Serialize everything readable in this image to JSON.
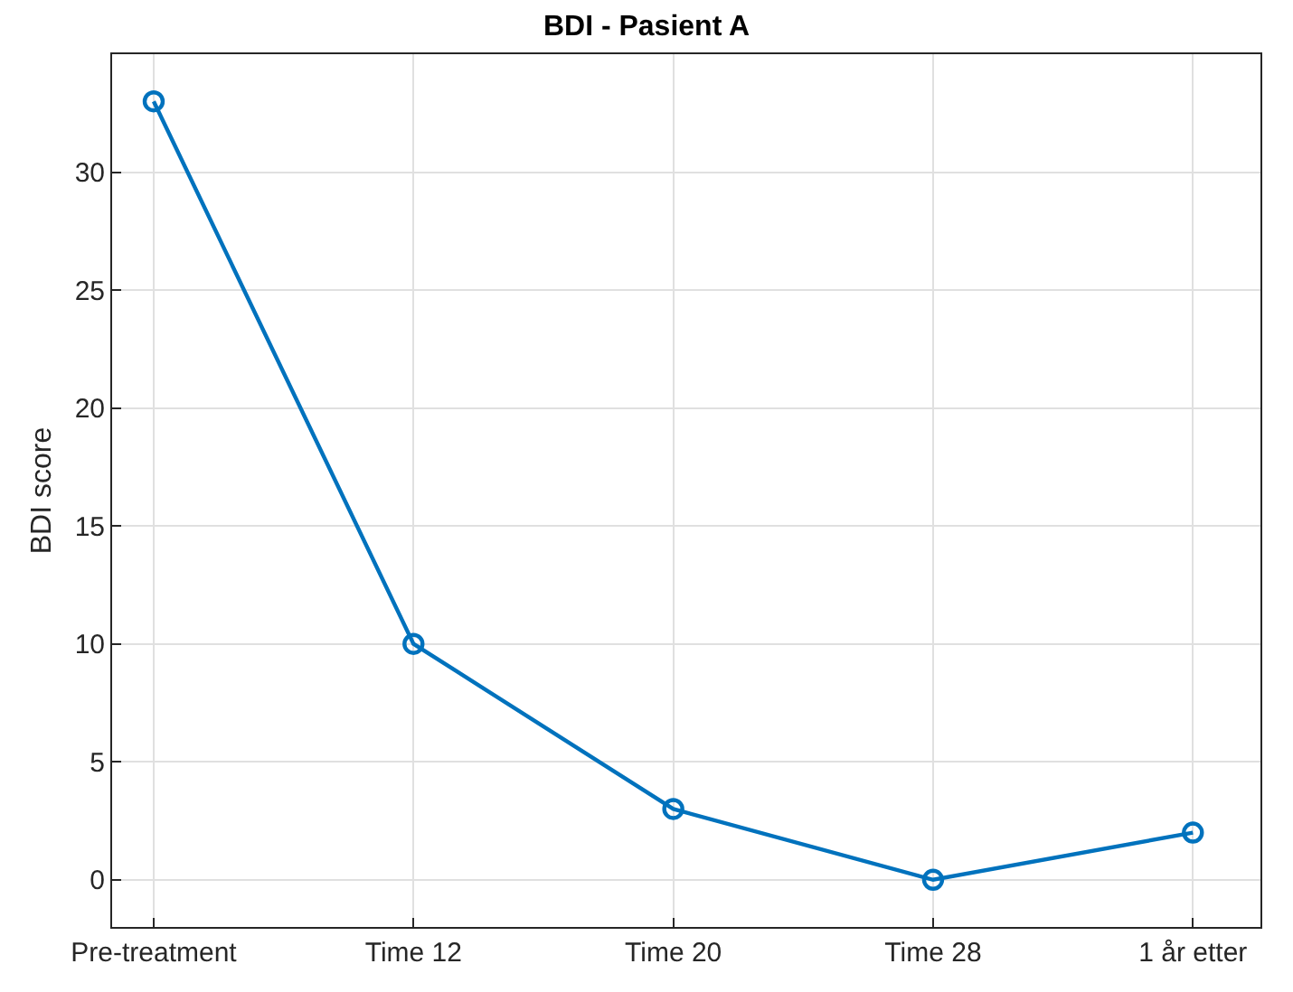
{
  "chart_data": {
    "type": "line",
    "title": "BDI - Pasient A",
    "ylabel": "BDI score",
    "categories": [
      "Pre-treatment",
      "Time 12",
      "Time 20",
      "Time 28",
      "1 år etter"
    ],
    "series": [
      {
        "color": "#0072bd",
        "values": [
          33,
          10,
          3,
          0,
          2
        ]
      }
    ],
    "ylim": [
      -2,
      35
    ],
    "yticks": [
      0,
      5,
      10,
      15,
      20,
      25,
      30
    ],
    "grid": true,
    "marker": "circle",
    "line_style": "solid"
  }
}
